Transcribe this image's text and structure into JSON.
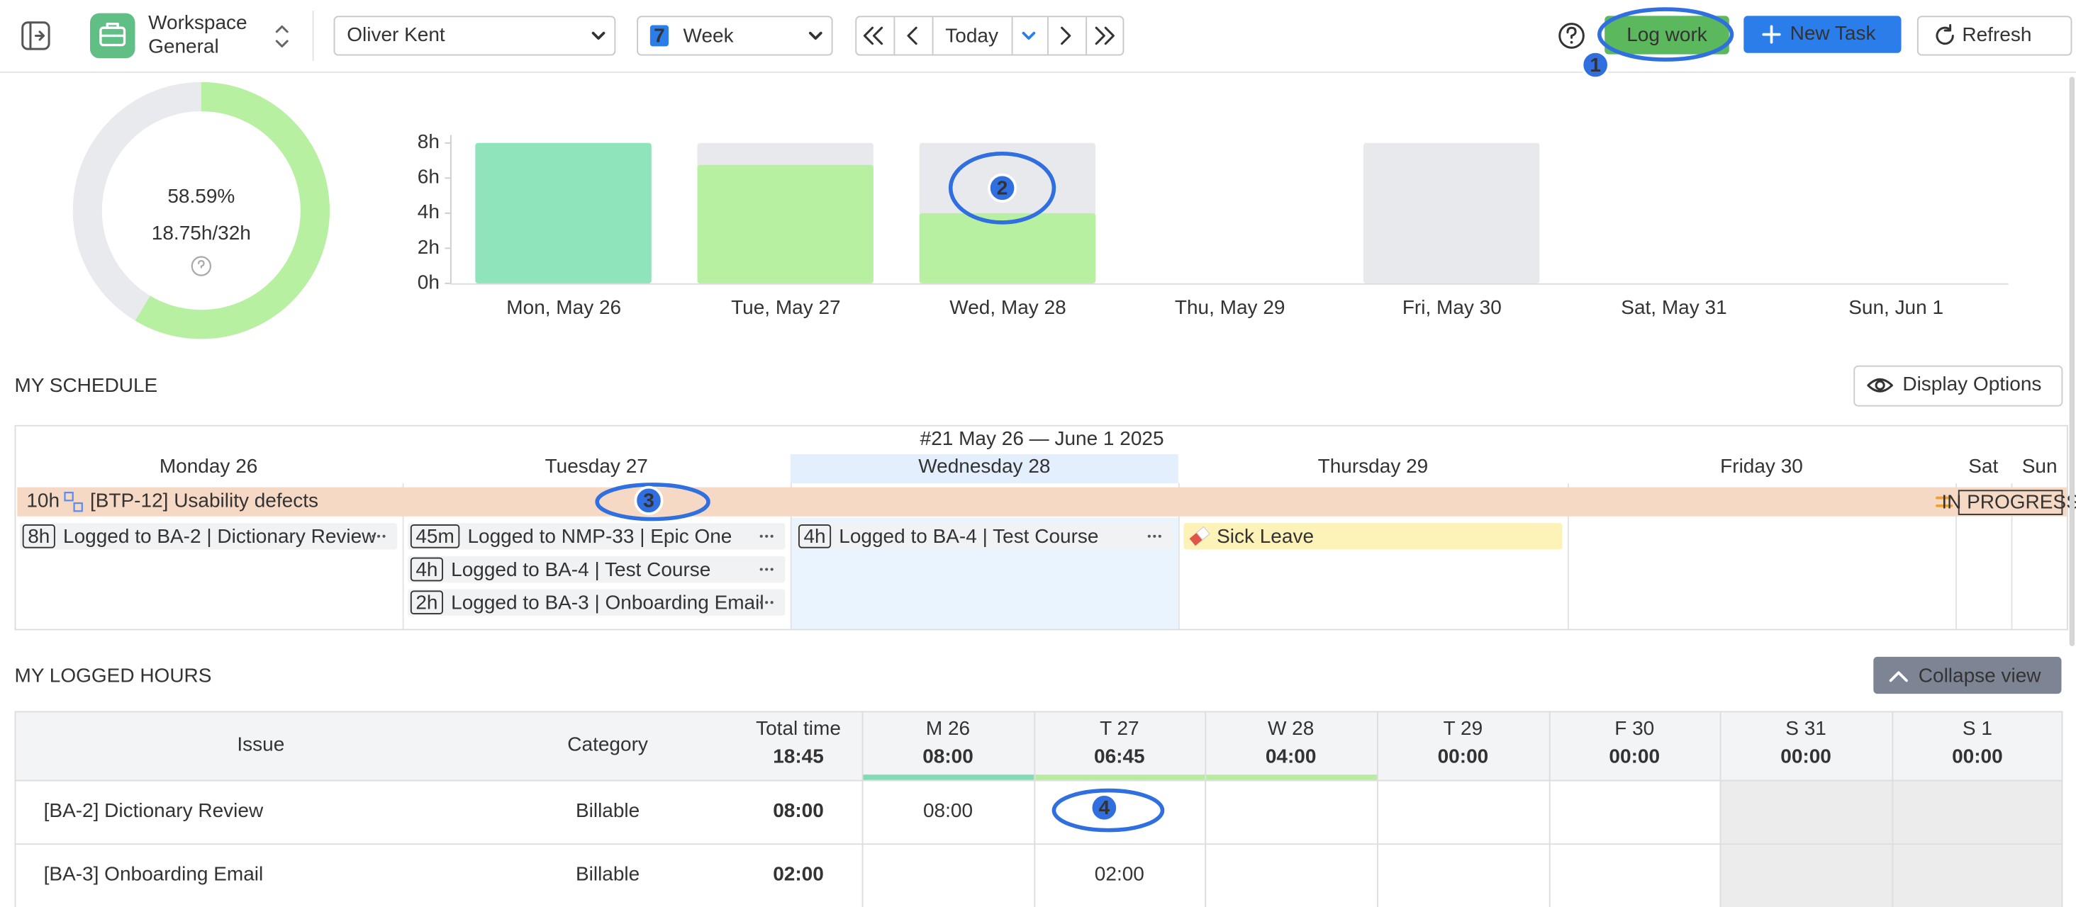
{
  "toolbar": {
    "workspace": "Workspace",
    "workspace_sub": "General",
    "user": "Oliver Kent",
    "calendar_day": "7",
    "period": "Week",
    "today": "Today",
    "log_work": "Log work",
    "new_task": "New Task",
    "refresh": "Refresh"
  },
  "annotations": [
    "1",
    "2",
    "3",
    "4"
  ],
  "summary": {
    "percent": 58.59,
    "percent_label": "58.59%",
    "hours_label": "18.75h/32h"
  },
  "chart_data": {
    "type": "bar",
    "categories": [
      "Mon, May 26",
      "Tue, May 27",
      "Wed, May 28",
      "Thu, May 29",
      "Fri, May 30",
      "Sat, May 31",
      "Sun, Jun 1"
    ],
    "series": [
      {
        "color": "#e8e9ec",
        "values": [
          8,
          8,
          8,
          null,
          8,
          null,
          null
        ]
      },
      {
        "colors": [
          "#8fe4bb",
          "#b8f0a2",
          "#b8f0a2",
          "#b8f0a2",
          "#b8f0a2",
          "#b8f0a2",
          "#b8f0a2"
        ],
        "values": [
          8,
          6.75,
          4,
          null,
          0,
          null,
          null
        ]
      }
    ],
    "ylim": [
      0,
      8
    ],
    "yticks": [
      {
        "value": 0,
        "label": "0h"
      },
      {
        "value": 2,
        "label": "2h"
      },
      {
        "value": 4,
        "label": "4h"
      },
      {
        "value": 6,
        "label": "6h"
      },
      {
        "value": 8,
        "label": "8h"
      }
    ]
  },
  "schedule": {
    "title": "MY SCHEDULE",
    "display_options": "Display Options",
    "week_label": "#21 May 26 — June 1 2025",
    "days": [
      "Monday 26",
      "Tuesday 27",
      "Wednesday 28",
      "Thursday 29",
      "Friday 30",
      "Sat",
      "Sun"
    ],
    "task": {
      "hours": "10h",
      "name": "[BTP-12] Usability defects",
      "status": "IN PROGRESS"
    },
    "entries": [
      [
        {
          "tag": "8h",
          "text": "Logged to BA-2 | Dictionary Review"
        }
      ],
      [
        {
          "tag": "45m",
          "text": "Logged to NMP-33 | Epic One"
        },
        {
          "tag": "4h",
          "text": "Logged to BA-4 | Test Course"
        },
        {
          "tag": "2h",
          "text": "Logged to BA-3 | Onboarding Email"
        }
      ],
      [
        {
          "tag": "4h",
          "text": "Logged to BA-4 | Test Course"
        }
      ],
      [
        {
          "text": "Sick Leave"
        }
      ],
      [],
      [],
      []
    ]
  },
  "logged_hours": {
    "title": "MY LOGGED HOURS",
    "collapse": "Collapse view",
    "columns": [
      {
        "label": "Issue"
      },
      {
        "label": "Category"
      },
      {
        "label": "Total time",
        "sub": "18:45"
      },
      {
        "label": "M 26",
        "sub": "08:00"
      },
      {
        "label": "T 27",
        "sub": "06:45"
      },
      {
        "label": "W 28",
        "sub": "04:00"
      },
      {
        "label": "T 29",
        "sub": "00:00"
      },
      {
        "label": "F 30",
        "sub": "00:00"
      },
      {
        "label": "S 31",
        "sub": "00:00"
      },
      {
        "label": "S 1",
        "sub": "00:00"
      }
    ],
    "rows": [
      [
        "[BA-2] Dictionary Review",
        "Billable",
        "08:00",
        "08:00",
        null,
        null,
        null,
        null,
        null,
        null
      ],
      [
        "[BA-3] Onboarding Email",
        "Billable",
        "02:00",
        null,
        "02:00",
        null,
        null,
        null,
        null,
        null
      ]
    ]
  }
}
